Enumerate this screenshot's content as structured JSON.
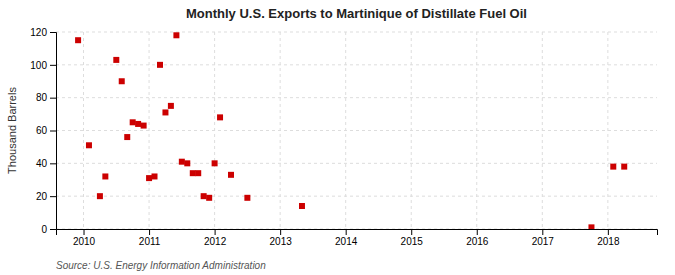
{
  "chart_data": {
    "type": "scatter",
    "title": "Monthly U.S. Exports to Martinique of Distillate Fuel Oil",
    "ylabel": "Thousand Barrels",
    "source": "Source: U.S. Energy Information Administration",
    "x": [
      2009.917,
      2010.083,
      2010.25,
      2010.333,
      2010.5,
      2010.583,
      2010.667,
      2010.75,
      2010.833,
      2010.917,
      2011.0,
      2011.083,
      2011.167,
      2011.25,
      2011.333,
      2011.417,
      2011.5,
      2011.583,
      2011.667,
      2011.75,
      2011.833,
      2011.917,
      2012.0,
      2012.083,
      2012.25,
      2012.5,
      2013.333,
      2017.75,
      2018.083,
      2018.25
    ],
    "values": [
      115,
      51,
      20,
      32,
      103,
      90,
      56,
      65,
      64,
      63,
      31,
      32,
      100,
      71,
      75,
      118,
      41,
      40,
      34,
      34,
      20,
      19,
      40,
      68,
      33,
      19,
      14,
      1,
      38,
      38
    ],
    "color": "#cc0000",
    "marker": "square",
    "xlim": [
      2009.58,
      2018.75
    ],
    "ylim": [
      0,
      120
    ],
    "xticks": [
      2010,
      2011,
      2012,
      2013,
      2014,
      2015,
      2016,
      2017,
      2018
    ],
    "yticks": [
      0,
      20,
      40,
      60,
      80,
      100,
      120
    ],
    "grid": true
  }
}
